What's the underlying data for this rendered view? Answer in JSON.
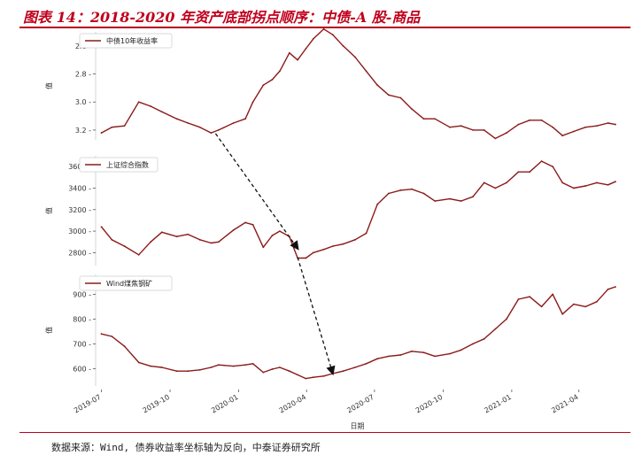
{
  "figure": {
    "title": "图表 14：2018-2020 年资产底部拐点顺序：中债-A 股-商品",
    "source": "数据来源：Wind, 债券收益率坐标轴为反向，中泰证券研究所"
  },
  "colors": {
    "series": "#8b1a1a",
    "accent": "#c0001c"
  },
  "chart_data": {
    "type": "line",
    "xlabel": "日期",
    "x_ticks": [
      "2019-07",
      "2019-10",
      "2020-01",
      "2020-04",
      "2020-07",
      "2020-10",
      "2021-01",
      "2021-04"
    ],
    "x_range": [
      "2019-06-28",
      "2021-05-20"
    ],
    "arrows": [
      {
        "from": [
          "2019-12-01",
          3.2
        ],
        "to": [
          "2020-03-20",
          2790
        ],
        "note": "中债 → A股"
      },
      {
        "from": [
          "2020-03-20",
          2790
        ],
        "to": [
          "2020-05-06",
          560
        ],
        "note": "A股 → 商品"
      }
    ],
    "panels": [
      {
        "id": "bond",
        "legend": "中债10年收益率",
        "ylabel": "值",
        "y_inverted": true,
        "ylim": [
          2.5,
          3.27
        ],
        "y_ticks": [
          2.6,
          2.8,
          3.0,
          3.2
        ],
        "series": [
          {
            "name": "中债10年收益率",
            "x": [
              "2019-07-01",
              "2019-07-15",
              "2019-08-01",
              "2019-08-20",
              "2019-09-05",
              "2019-09-20",
              "2019-10-10",
              "2019-10-25",
              "2019-11-10",
              "2019-11-25",
              "2019-12-05",
              "2019-12-25",
              "2020-01-10",
              "2020-01-20",
              "2020-02-03",
              "2020-02-15",
              "2020-02-25",
              "2020-03-09",
              "2020-03-20",
              "2020-03-31",
              "2020-04-10",
              "2020-04-24",
              "2020-05-06",
              "2020-05-20",
              "2020-06-05",
              "2020-06-20",
              "2020-07-05",
              "2020-07-20",
              "2020-08-05",
              "2020-08-20",
              "2020-09-05",
              "2020-09-20",
              "2020-10-10",
              "2020-10-25",
              "2020-11-10",
              "2020-11-25",
              "2020-12-10",
              "2020-12-25",
              "2021-01-10",
              "2021-01-25",
              "2021-02-10",
              "2021-02-25",
              "2021-03-10",
              "2021-03-25",
              "2021-04-10",
              "2021-04-25",
              "2021-05-10",
              "2021-05-20"
            ],
            "y": [
              3.22,
              3.18,
              3.17,
              3.0,
              3.03,
              3.07,
              3.12,
              3.15,
              3.18,
              3.22,
              3.2,
              3.15,
              3.12,
              3.0,
              2.88,
              2.84,
              2.78,
              2.65,
              2.7,
              2.62,
              2.55,
              2.48,
              2.52,
              2.6,
              2.68,
              2.78,
              2.88,
              2.95,
              2.97,
              3.05,
              3.12,
              3.12,
              3.18,
              3.17,
              3.2,
              3.2,
              3.26,
              3.22,
              3.16,
              3.13,
              3.13,
              3.18,
              3.24,
              3.21,
              3.18,
              3.17,
              3.15,
              3.16
            ]
          }
        ]
      },
      {
        "id": "equity",
        "legend": "上证综合指数",
        "ylabel": "值",
        "y_inverted": false,
        "ylim": [
          2680,
          3700
        ],
        "y_ticks": [
          2800,
          3000,
          3200,
          3400,
          3600
        ],
        "series": [
          {
            "name": "上证综合指数",
            "x": [
              "2019-07-01",
              "2019-07-15",
              "2019-08-01",
              "2019-08-20",
              "2019-09-05",
              "2019-09-20",
              "2019-10-10",
              "2019-10-25",
              "2019-11-10",
              "2019-11-25",
              "2019-12-05",
              "2019-12-25",
              "2020-01-10",
              "2020-01-20",
              "2020-02-03",
              "2020-02-15",
              "2020-02-25",
              "2020-03-09",
              "2020-03-20",
              "2020-03-31",
              "2020-04-10",
              "2020-04-24",
              "2020-05-06",
              "2020-05-20",
              "2020-06-05",
              "2020-06-20",
              "2020-07-05",
              "2020-07-20",
              "2020-08-05",
              "2020-08-20",
              "2020-09-05",
              "2020-09-20",
              "2020-10-10",
              "2020-10-25",
              "2020-11-10",
              "2020-11-25",
              "2020-12-10",
              "2020-12-25",
              "2021-01-10",
              "2021-01-25",
              "2021-02-10",
              "2021-02-25",
              "2021-03-10",
              "2021-03-25",
              "2021-04-10",
              "2021-04-25",
              "2021-05-10",
              "2021-05-20"
            ],
            "y": [
              3040,
              2920,
              2860,
              2780,
              2900,
              2990,
              2950,
              2970,
              2920,
              2890,
              2900,
              3010,
              3080,
              3060,
              2850,
              2960,
              3000,
              2950,
              2750,
              2750,
              2800,
              2830,
              2860,
              2880,
              2920,
              2980,
              3250,
              3350,
              3380,
              3390,
              3350,
              3280,
              3300,
              3280,
              3320,
              3450,
              3400,
              3450,
              3550,
              3550,
              3650,
              3600,
              3450,
              3400,
              3420,
              3450,
              3430,
              3460
            ]
          }
        ]
      },
      {
        "id": "coal",
        "legend": "Wind煤焦钢矿",
        "ylabel": "值",
        "y_inverted": false,
        "ylim": [
          530,
          980
        ],
        "y_ticks": [
          600,
          700,
          800,
          900
        ],
        "series": [
          {
            "name": "Wind煤焦钢矿",
            "x": [
              "2019-07-01",
              "2019-07-15",
              "2019-08-01",
              "2019-08-20",
              "2019-09-05",
              "2019-09-20",
              "2019-10-10",
              "2019-10-25",
              "2019-11-10",
              "2019-11-25",
              "2019-12-05",
              "2019-12-25",
              "2020-01-10",
              "2020-01-20",
              "2020-02-03",
              "2020-02-15",
              "2020-02-25",
              "2020-03-09",
              "2020-03-20",
              "2020-03-31",
              "2020-04-10",
              "2020-04-24",
              "2020-05-06",
              "2020-05-20",
              "2020-06-05",
              "2020-06-20",
              "2020-07-05",
              "2020-07-20",
              "2020-08-05",
              "2020-08-20",
              "2020-09-05",
              "2020-09-20",
              "2020-10-10",
              "2020-10-25",
              "2020-11-10",
              "2020-11-25",
              "2020-12-10",
              "2020-12-25",
              "2021-01-10",
              "2021-01-25",
              "2021-02-10",
              "2021-02-25",
              "2021-03-10",
              "2021-03-25",
              "2021-04-10",
              "2021-04-25",
              "2021-05-10",
              "2021-05-20"
            ],
            "y": [
              740,
              730,
              690,
              625,
              610,
              605,
              590,
              590,
              595,
              605,
              615,
              610,
              615,
              620,
              585,
              598,
              605,
              590,
              575,
              560,
              565,
              570,
              580,
              590,
              605,
              620,
              640,
              650,
              655,
              670,
              665,
              650,
              660,
              675,
              700,
              720,
              760,
              800,
              880,
              890,
              850,
              900,
              820,
              860,
              850,
              870,
              920,
              930
            ]
          }
        ]
      }
    ]
  }
}
